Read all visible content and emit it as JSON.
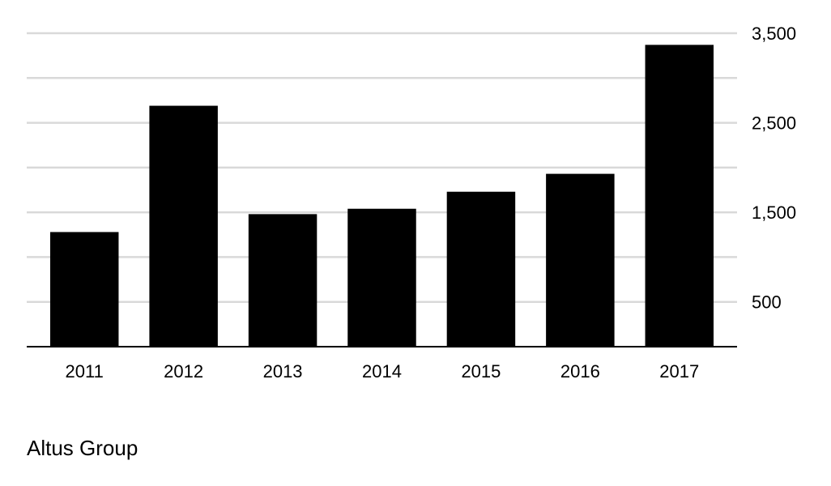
{
  "chart_data": {
    "type": "bar",
    "categories": [
      "2011",
      "2012",
      "2013",
      "2014",
      "2015",
      "2016",
      "2017"
    ],
    "values": [
      1280,
      2690,
      1480,
      1540,
      1730,
      1930,
      3370
    ],
    "ylim": [
      0,
      3500
    ],
    "y_ticks": [
      500,
      1000,
      1500,
      2000,
      2500,
      3000,
      3500
    ],
    "y_tick_labels": [
      "500",
      "",
      "1,500",
      "",
      "2,500",
      "",
      "3,500"
    ],
    "y_axis_position": "right",
    "grid": true,
    "colors": {
      "bar": "#000000",
      "grid": "#d9d9d9",
      "axis": "#000000"
    }
  },
  "source": "Altus Group"
}
